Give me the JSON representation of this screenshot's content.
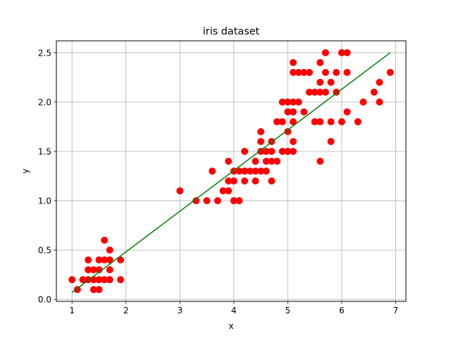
{
  "chart_data": {
    "type": "scatter",
    "title": "iris dataset",
    "xlabel": "x",
    "ylabel": "y",
    "xlim": [
      0.71,
      7.19
    ],
    "ylim": [
      -0.02,
      2.62
    ],
    "xticks": [
      1,
      2,
      3,
      4,
      5,
      6,
      7
    ],
    "yticks": [
      0.0,
      0.5,
      1.0,
      1.5,
      2.0,
      2.5
    ],
    "xtick_labels": [
      "1",
      "2",
      "3",
      "4",
      "5",
      "6",
      "7"
    ],
    "ytick_labels": [
      "0.0",
      "0.5",
      "1.0",
      "1.5",
      "2.0",
      "2.5"
    ],
    "grid": true,
    "colors": {
      "points": "#ff0000",
      "fit_line": "#008000",
      "grid": "#b0b0b0"
    },
    "series": [
      {
        "type": "scatter",
        "points": [
          [
            1.0,
            0.2
          ],
          [
            1.1,
            0.1
          ],
          [
            1.2,
            0.2
          ],
          [
            1.3,
            0.2
          ],
          [
            1.3,
            0.3
          ],
          [
            1.3,
            0.4
          ],
          [
            1.4,
            0.1
          ],
          [
            1.4,
            0.2
          ],
          [
            1.4,
            0.3
          ],
          [
            1.5,
            0.1
          ],
          [
            1.5,
            0.2
          ],
          [
            1.5,
            0.3
          ],
          [
            1.5,
            0.4
          ],
          [
            1.6,
            0.2
          ],
          [
            1.6,
            0.4
          ],
          [
            1.6,
            0.6
          ],
          [
            1.7,
            0.2
          ],
          [
            1.7,
            0.3
          ],
          [
            1.7,
            0.4
          ],
          [
            1.7,
            0.5
          ],
          [
            1.9,
            0.2
          ],
          [
            1.9,
            0.4
          ],
          [
            3.0,
            1.1
          ],
          [
            3.3,
            1.0
          ],
          [
            3.5,
            1.0
          ],
          [
            3.6,
            1.3
          ],
          [
            3.7,
            1.0
          ],
          [
            3.8,
            1.1
          ],
          [
            3.9,
            1.1
          ],
          [
            3.9,
            1.2
          ],
          [
            3.9,
            1.4
          ],
          [
            4.0,
            1.0
          ],
          [
            4.0,
            1.2
          ],
          [
            4.0,
            1.3
          ],
          [
            4.1,
            1.0
          ],
          [
            4.1,
            1.3
          ],
          [
            4.2,
            1.2
          ],
          [
            4.2,
            1.3
          ],
          [
            4.2,
            1.5
          ],
          [
            4.3,
            1.3
          ],
          [
            4.4,
            1.2
          ],
          [
            4.4,
            1.3
          ],
          [
            4.4,
            1.4
          ],
          [
            4.5,
            1.3
          ],
          [
            4.5,
            1.5
          ],
          [
            4.5,
            1.6
          ],
          [
            4.5,
            1.7
          ],
          [
            4.6,
            1.3
          ],
          [
            4.6,
            1.4
          ],
          [
            4.6,
            1.5
          ],
          [
            4.7,
            1.2
          ],
          [
            4.7,
            1.4
          ],
          [
            4.7,
            1.5
          ],
          [
            4.7,
            1.6
          ],
          [
            4.8,
            1.4
          ],
          [
            4.8,
            1.8
          ],
          [
            4.9,
            1.5
          ],
          [
            4.9,
            1.8
          ],
          [
            4.9,
            2.0
          ],
          [
            5.0,
            1.5
          ],
          [
            5.0,
            1.7
          ],
          [
            5.0,
            1.9
          ],
          [
            5.0,
            2.0
          ],
          [
            5.1,
            1.5
          ],
          [
            5.1,
            1.6
          ],
          [
            5.1,
            1.8
          ],
          [
            5.1,
            1.9
          ],
          [
            5.1,
            2.0
          ],
          [
            5.1,
            2.3
          ],
          [
            5.1,
            2.4
          ],
          [
            5.2,
            2.0
          ],
          [
            5.2,
            2.3
          ],
          [
            5.3,
            1.9
          ],
          [
            5.3,
            2.3
          ],
          [
            5.4,
            2.1
          ],
          [
            5.4,
            2.3
          ],
          [
            5.5,
            1.8
          ],
          [
            5.5,
            2.1
          ],
          [
            5.6,
            1.4
          ],
          [
            5.6,
            1.8
          ],
          [
            5.6,
            2.1
          ],
          [
            5.6,
            2.2
          ],
          [
            5.6,
            2.4
          ],
          [
            5.7,
            2.1
          ],
          [
            5.7,
            2.3
          ],
          [
            5.7,
            2.5
          ],
          [
            5.8,
            1.6
          ],
          [
            5.8,
            1.8
          ],
          [
            5.8,
            2.2
          ],
          [
            5.9,
            2.1
          ],
          [
            5.9,
            2.3
          ],
          [
            6.0,
            1.8
          ],
          [
            6.0,
            2.5
          ],
          [
            6.1,
            1.9
          ],
          [
            6.1,
            2.3
          ],
          [
            6.1,
            2.5
          ],
          [
            6.3,
            1.8
          ],
          [
            6.4,
            2.0
          ],
          [
            6.6,
            2.1
          ],
          [
            6.7,
            2.0
          ],
          [
            6.7,
            2.2
          ],
          [
            6.9,
            2.3
          ]
        ]
      },
      {
        "type": "line",
        "x": [
          1.0,
          6.9
        ],
        "y": [
          0.07,
          2.5
        ]
      }
    ]
  }
}
